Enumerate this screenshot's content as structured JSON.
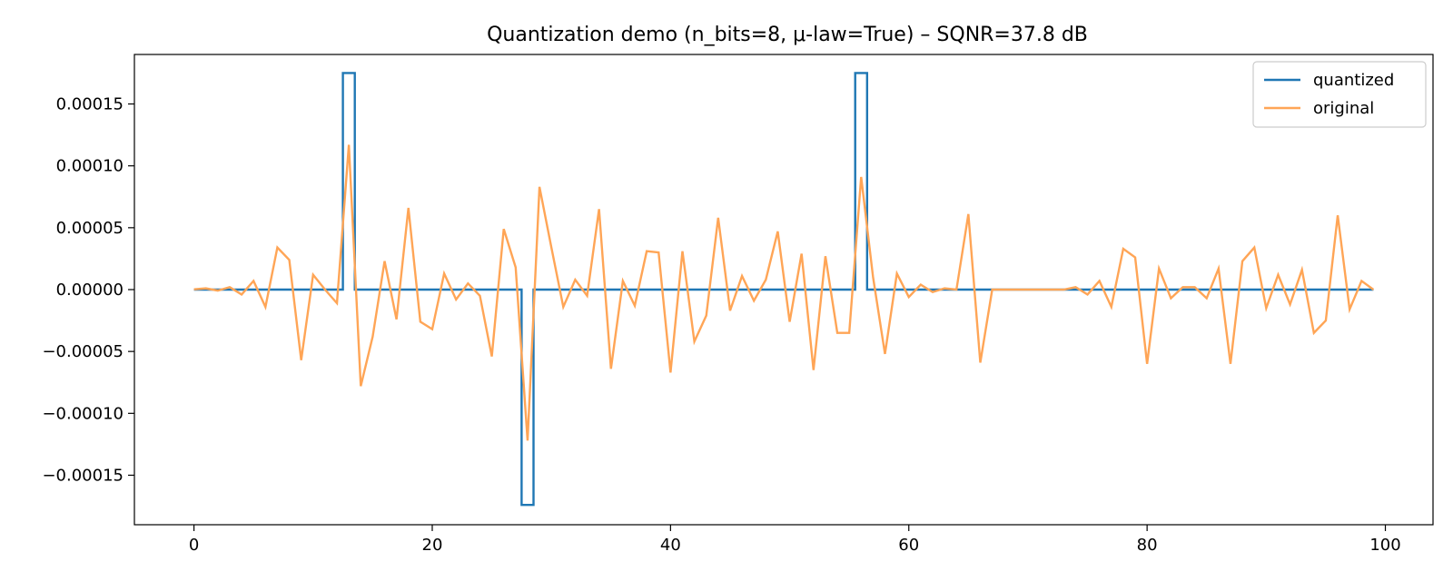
{
  "chart_data": {
    "type": "line",
    "title": "Quantization demo (n_bits=8, μ-law=True) – SQNR=37.8 dB",
    "xlabel": "",
    "ylabel": "",
    "xlim": [
      -5,
      104
    ],
    "ylim": [
      -0.00019,
      0.00019
    ],
    "xticks": [
      0,
      20,
      40,
      60,
      80,
      100
    ],
    "xtick_labels": [
      "0",
      "20",
      "40",
      "60",
      "80",
      "100"
    ],
    "yticks": [
      -0.00015,
      -0.0001,
      -5e-05,
      0,
      5e-05,
      0.0001,
      0.00015
    ],
    "ytick_labels": [
      "−0.00015",
      "−0.00010",
      "−0.00005",
      "0.00000",
      "0.00005",
      "0.00010",
      "0.00015"
    ],
    "grid": false,
    "legend_position": "top-right",
    "x": [
      0,
      1,
      2,
      3,
      4,
      5,
      6,
      7,
      8,
      9,
      10,
      11,
      12,
      13,
      14,
      15,
      16,
      17,
      18,
      19,
      20,
      21,
      22,
      23,
      24,
      25,
      26,
      27,
      28,
      29,
      30,
      31,
      32,
      33,
      34,
      35,
      36,
      37,
      38,
      39,
      40,
      41,
      42,
      43,
      44,
      45,
      46,
      47,
      48,
      49,
      50,
      51,
      52,
      53,
      54,
      55,
      56,
      57,
      58,
      59,
      60,
      61,
      62,
      63,
      64,
      65,
      66,
      67,
      68,
      69,
      70,
      71,
      72,
      73,
      74,
      75,
      76,
      77,
      78,
      79,
      80,
      81,
      82,
      83,
      84,
      85,
      86,
      87,
      88,
      89,
      90,
      91,
      92,
      93,
      94,
      95,
      96,
      97,
      98,
      99
    ],
    "series": [
      {
        "name": "quantized",
        "color": "#1f77b4",
        "style": "step-mid",
        "values": [
          0,
          0,
          0,
          0,
          0,
          0,
          0,
          0,
          0,
          0,
          0,
          0,
          0,
          0.000175,
          0,
          0,
          0,
          0,
          0,
          0,
          0,
          0,
          0,
          0,
          0,
          0,
          0,
          0,
          -0.000174,
          0,
          0,
          0,
          0,
          0,
          0,
          0,
          0,
          0,
          0,
          0,
          0,
          0,
          0,
          0,
          0,
          0,
          0,
          0,
          0,
          0,
          0,
          0,
          0,
          0,
          0,
          0,
          0.000175,
          0,
          0,
          0,
          0,
          0,
          0,
          0,
          0,
          0,
          0,
          0,
          0,
          0,
          0,
          0,
          0,
          0,
          0,
          0,
          0,
          0,
          0,
          0,
          0,
          0,
          0,
          0,
          0,
          0,
          0,
          0,
          0,
          0,
          0,
          0,
          0,
          0,
          0,
          0,
          0,
          0,
          0,
          0
        ]
      },
      {
        "name": "original",
        "color": "#ffa556",
        "style": "line",
        "values": [
          2e-07,
          1e-06,
          -8e-07,
          2e-06,
          -4e-06,
          7e-06,
          -1.4e-05,
          3.4e-05,
          2.4e-05,
          -5.7e-05,
          1.2e-05,
          0.0,
          -1.1e-05,
          0.000117,
          -7.8e-05,
          -3.8e-05,
          2.3e-05,
          -2.4e-05,
          6.6e-05,
          -2.6e-05,
          -3.2e-05,
          1.3e-05,
          -8e-06,
          5e-06,
          -5e-06,
          -5.4e-05,
          4.9e-05,
          1.8e-05,
          -0.000122,
          8.3e-05,
          3.4e-05,
          -1.4e-05,
          8e-06,
          -5e-06,
          6.5e-05,
          -6.4e-05,
          7e-06,
          -1.3e-05,
          3.1e-05,
          3e-05,
          -6.7e-05,
          3.1e-05,
          -4.2e-05,
          -2.1e-05,
          5.8e-05,
          -1.7e-05,
          1.1e-05,
          -9e-06,
          8e-06,
          4.7e-05,
          -2.6e-05,
          2.9e-05,
          -6.5e-05,
          2.7e-05,
          -3.5e-05,
          -3.5e-05,
          9.1e-05,
          1e-05,
          -5.2e-05,
          1.3e-05,
          -6e-06,
          4e-06,
          -2e-06,
          1e-06,
          0.0,
          6.1e-05,
          -5.9e-05,
          0.0,
          0.0,
          0.0,
          0.0,
          0.0,
          0.0,
          0.0,
          2e-06,
          -4e-06,
          7e-06,
          -1.4e-05,
          3.3e-05,
          2.6e-05,
          -6e-05,
          1.7e-05,
          -7e-06,
          2e-06,
          2e-06,
          -7e-06,
          1.7e-05,
          -6e-05,
          2.3e-05,
          3.4e-05,
          -1.5e-05,
          1.2e-05,
          -1.2e-05,
          1.6e-05,
          -3.5e-05,
          -2.5e-05,
          6e-05,
          -1.6e-05,
          7e-06,
          0.0
        ]
      }
    ]
  }
}
